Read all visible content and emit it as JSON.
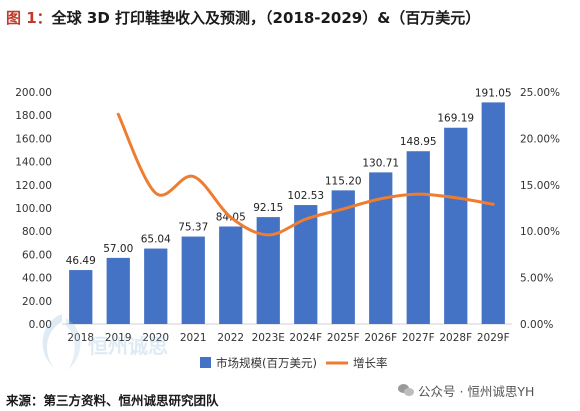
{
  "header": {
    "figure_label": "图 1：",
    "title": "全球 3D 打印鞋垫收入及预测，（2018-2029）&（百万美元）"
  },
  "source": "来源：第三方资料、恒州诚思研究团队",
  "watermarks": {
    "left_logo_text": "恒州诚思",
    "right_text": "公众号 · 恒州诚思YH"
  },
  "colors": {
    "bar": "#4472c4",
    "line": "#ed7d31",
    "title_accent": "#c0392b"
  },
  "chart_data": {
    "type": "bar+line",
    "categories": [
      "2018",
      "2019",
      "2020",
      "2021",
      "2022",
      "2023E",
      "2024F",
      "2025F",
      "2026F",
      "2027F",
      "2028F",
      "2029F"
    ],
    "series": [
      {
        "name": "市场规模(百万美元)",
        "type": "bar",
        "axis": "left",
        "values": [
          46.49,
          57.0,
          65.04,
          75.37,
          84.05,
          92.15,
          102.53,
          115.2,
          130.71,
          148.95,
          169.19,
          191.05
        ],
        "labels": [
          "46.49",
          "57.00",
          "65.04",
          "75.37",
          "84.05",
          "92.15",
          "102.53",
          "115.20",
          "130.71",
          "148.95",
          "169.19",
          "191.05"
        ]
      },
      {
        "name": "增长率",
        "type": "line",
        "axis": "right",
        "values": [
          null,
          22.6,
          14.1,
          15.9,
          11.5,
          9.6,
          11.3,
          12.4,
          13.5,
          14.0,
          13.6,
          12.9
        ]
      }
    ],
    "y_left": {
      "range": [
        0,
        200
      ],
      "ticks": [
        "0.00",
        "20.00",
        "40.00",
        "60.00",
        "80.00",
        "100.00",
        "120.00",
        "140.00",
        "160.00",
        "180.00",
        "200.00"
      ]
    },
    "y_right": {
      "range": [
        0,
        25
      ],
      "ticks": [
        "0.00%",
        "5.00%",
        "10.00%",
        "15.00%",
        "20.00%",
        "25.00%"
      ]
    },
    "grid": false,
    "legend_position": "bottom"
  }
}
